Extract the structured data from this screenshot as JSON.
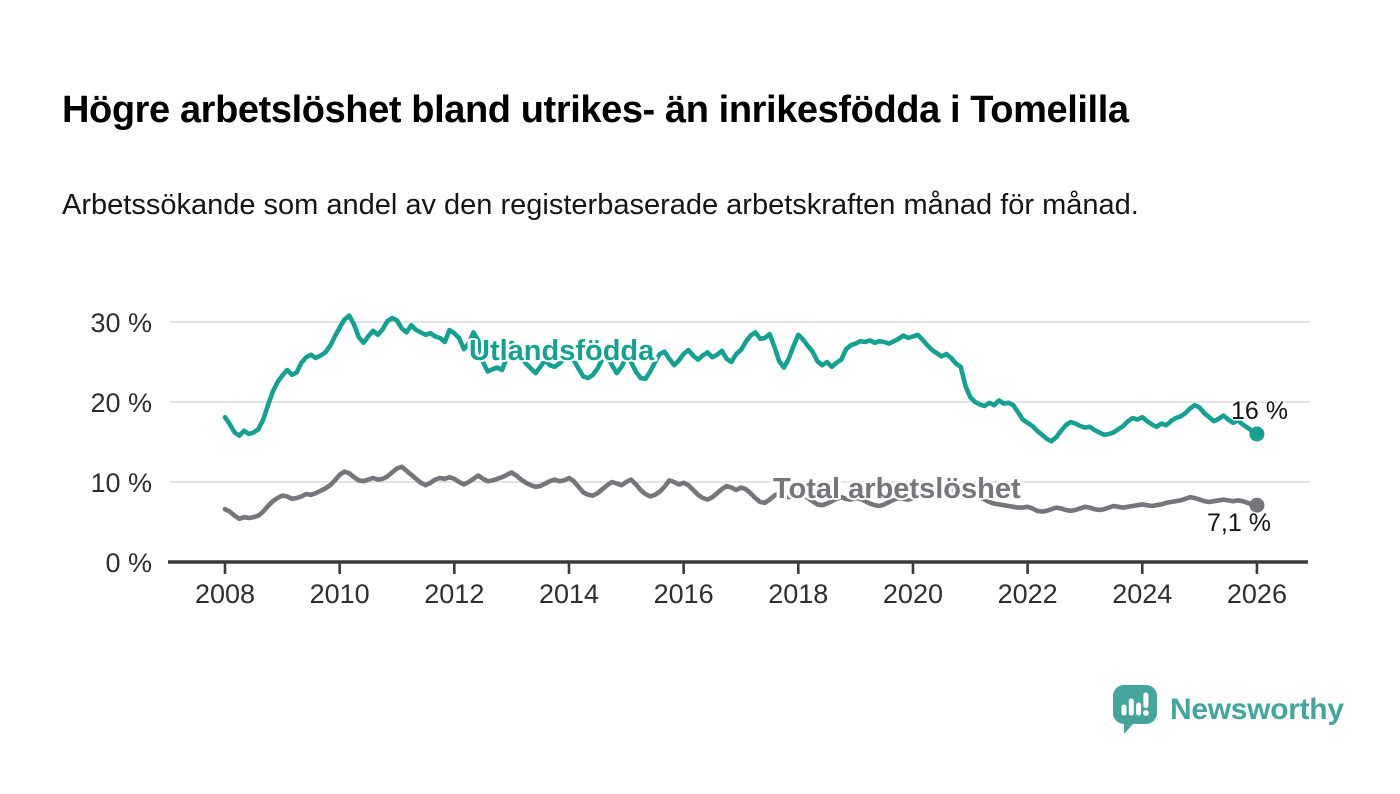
{
  "header": {
    "title": "Högre arbetslöshet bland utrikes- än inrikesfödda i Tomelilla",
    "subtitle": "Arbetssökande som andel av den registerbaserade arbetskraften månad för månad."
  },
  "chart_data": {
    "type": "line",
    "title": "Högre arbetslöshet bland utrikes- än inrikesfödda i Tomelilla",
    "xlabel": "",
    "ylabel": "",
    "x_start": 2008,
    "x_end": 2026,
    "points_per_year": 12,
    "xlim": [
      2007,
      2027
    ],
    "ylim": [
      0,
      32
    ],
    "grid": true,
    "legend_position": "inline-labels",
    "x_ticks": [
      2008,
      2010,
      2012,
      2014,
      2016,
      2018,
      2020,
      2022,
      2024,
      2026
    ],
    "y_ticks": [
      {
        "value": 0,
        "label": "0 %"
      },
      {
        "value": 10,
        "label": "10 %"
      },
      {
        "value": 20,
        "label": "20 %"
      },
      {
        "value": 30,
        "label": "30 %"
      }
    ],
    "series": [
      {
        "name": "Utlandsfödda",
        "color": "#17A092",
        "end_label": "16 %",
        "values": [
          18.1,
          17.2,
          16.2,
          15.8,
          16.4,
          16.0,
          16.2,
          16.6,
          17.8,
          19.6,
          21.3,
          22.5,
          23.3,
          24.0,
          23.4,
          23.7,
          24.9,
          25.6,
          25.9,
          25.5,
          25.8,
          26.2,
          27.0,
          28.2,
          29.3,
          30.3,
          30.8,
          29.7,
          28.1,
          27.4,
          28.2,
          28.9,
          28.4,
          29.1,
          30.1,
          30.5,
          30.2,
          29.2,
          28.7,
          29.6,
          29.0,
          28.7,
          28.4,
          28.6,
          28.2,
          28.0,
          27.5,
          29.0,
          28.6,
          28.0,
          26.6,
          27.3,
          28.7,
          27.7,
          25.0,
          23.8,
          24.1,
          24.3,
          24.0,
          25.6,
          27.4,
          26.7,
          25.6,
          24.8,
          24.2,
          23.6,
          24.4,
          25.2,
          24.6,
          24.4,
          24.8,
          25.4,
          26.0,
          25.2,
          24.2,
          23.2,
          23.0,
          23.4,
          24.2,
          25.4,
          25.8,
          24.6,
          23.6,
          24.4,
          25.6,
          25.0,
          23.8,
          23.0,
          22.9,
          23.8,
          25.0,
          26.0,
          26.3,
          25.4,
          24.6,
          25.2,
          26.0,
          26.5,
          25.8,
          25.3,
          25.8,
          26.2,
          25.6,
          25.9,
          26.4,
          25.4,
          25.0,
          26.0,
          26.5,
          27.5,
          28.3,
          28.7,
          27.9,
          28.0,
          28.5,
          26.9,
          25.1,
          24.3,
          25.4,
          27.0,
          28.4,
          27.8,
          27.0,
          26.3,
          25.1,
          24.6,
          25.0,
          24.4,
          24.9,
          25.3,
          26.6,
          27.1,
          27.3,
          27.6,
          27.5,
          27.7,
          27.4,
          27.6,
          27.5,
          27.3,
          27.6,
          27.9,
          28.3,
          28.0,
          28.2,
          28.4,
          27.8,
          27.1,
          26.5,
          26.1,
          25.7,
          26.0,
          25.5,
          24.8,
          24.4,
          22.0,
          20.6,
          20.0,
          19.7,
          19.5,
          19.9,
          19.6,
          20.2,
          19.8,
          19.9,
          19.6,
          18.7,
          17.8,
          17.4,
          17.0,
          16.4,
          15.9,
          15.4,
          15.1,
          15.6,
          16.4,
          17.1,
          17.5,
          17.3,
          17.0,
          16.8,
          16.9,
          16.5,
          16.2,
          15.9,
          16.0,
          16.2,
          16.6,
          17.0,
          17.6,
          18.0,
          17.8,
          18.1,
          17.6,
          17.2,
          16.9,
          17.3,
          17.1,
          17.6,
          18.0,
          18.2,
          18.6,
          19.2,
          19.6,
          19.3,
          18.6,
          18.1,
          17.6,
          17.9,
          18.3,
          17.8,
          17.4,
          17.7,
          17.2,
          16.8,
          16.4,
          16.0
        ]
      },
      {
        "name": "Total arbetslöshet",
        "color": "#75757B",
        "end_label": "7,1 %",
        "values": [
          6.6,
          6.3,
          5.8,
          5.4,
          5.6,
          5.5,
          5.6,
          5.8,
          6.3,
          7.0,
          7.6,
          8.0,
          8.3,
          8.2,
          7.9,
          8.0,
          8.2,
          8.5,
          8.4,
          8.6,
          8.9,
          9.2,
          9.6,
          10.2,
          10.9,
          11.3,
          11.1,
          10.6,
          10.2,
          10.1,
          10.3,
          10.5,
          10.3,
          10.4,
          10.7,
          11.2,
          11.7,
          11.9,
          11.4,
          10.9,
          10.4,
          9.9,
          9.6,
          9.9,
          10.3,
          10.5,
          10.4,
          10.6,
          10.4,
          10.0,
          9.7,
          10.0,
          10.4,
          10.8,
          10.4,
          10.1,
          10.2,
          10.4,
          10.6,
          10.9,
          11.2,
          10.8,
          10.3,
          9.9,
          9.6,
          9.4,
          9.5,
          9.8,
          10.1,
          10.3,
          10.1,
          10.2,
          10.5,
          10.1,
          9.4,
          8.7,
          8.4,
          8.3,
          8.6,
          9.1,
          9.6,
          10.0,
          9.8,
          9.6,
          10.0,
          10.3,
          9.7,
          9.0,
          8.5,
          8.2,
          8.4,
          8.8,
          9.4,
          10.2,
          10.0,
          9.7,
          9.9,
          9.6,
          9.0,
          8.4,
          8.0,
          7.8,
          8.1,
          8.6,
          9.1,
          9.5,
          9.3,
          9.0,
          9.3,
          9.1,
          8.6,
          8.0,
          7.5,
          7.4,
          7.8,
          8.3,
          8.6,
          8.4,
          8.1,
          8.3,
          8.6,
          8.4,
          8.0,
          7.6,
          7.2,
          7.1,
          7.3,
          7.6,
          7.9,
          8.1,
          7.9,
          7.8,
          8.0,
          7.9,
          7.6,
          7.3,
          7.1,
          7.0,
          7.2,
          7.5,
          7.8,
          8.0,
          7.9,
          7.8,
          8.0,
          8.1,
          8.6,
          9.2,
          9.5,
          9.6,
          9.4,
          9.2,
          9.0,
          8.8,
          8.6,
          8.5,
          8.6,
          8.4,
          8.1,
          7.8,
          7.5,
          7.3,
          7.2,
          7.1,
          7.0,
          6.9,
          6.8,
          6.8,
          6.9,
          6.7,
          6.4,
          6.3,
          6.4,
          6.6,
          6.8,
          6.7,
          6.5,
          6.4,
          6.5,
          6.7,
          6.9,
          6.8,
          6.6,
          6.5,
          6.6,
          6.8,
          7.0,
          6.9,
          6.8,
          6.9,
          7.0,
          7.1,
          7.2,
          7.1,
          7.0,
          7.1,
          7.2,
          7.4,
          7.5,
          7.6,
          7.7,
          7.9,
          8.1,
          8.0,
          7.8,
          7.6,
          7.5,
          7.6,
          7.7,
          7.8,
          7.7,
          7.6,
          7.7,
          7.6,
          7.4,
          7.2,
          7.1
        ]
      }
    ]
  },
  "footer": {
    "brand": "Newsworthy"
  },
  "colors": {
    "teal": "#17A092",
    "gray": "#75757B",
    "logo_teal": "#45A59D",
    "gridline": "#DCDCDC",
    "axis": "#3A3A3A",
    "tick_text": "#2E2E2E"
  }
}
